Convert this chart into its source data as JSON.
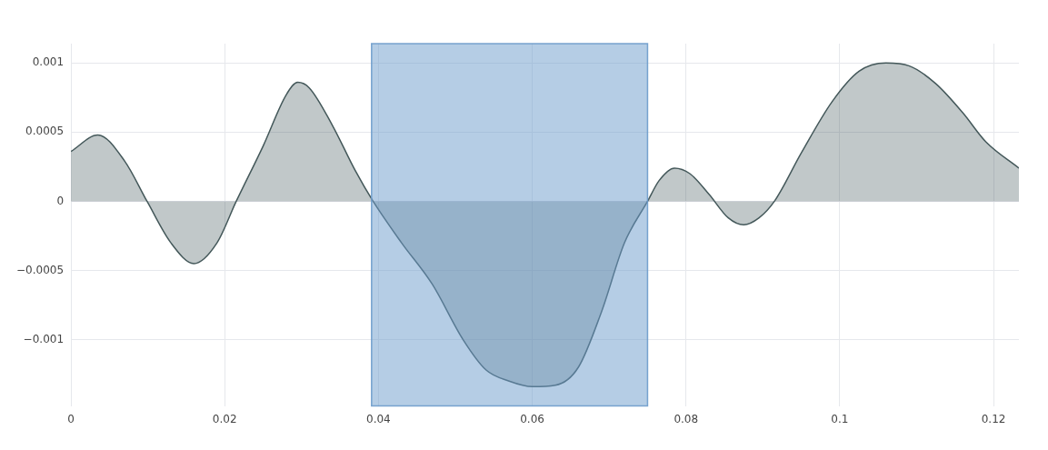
{
  "chart_data": {
    "type": "area",
    "x": [
      0,
      0.0035,
      0.007,
      0.0099,
      0.013,
      0.016,
      0.019,
      0.0215,
      0.025,
      0.028,
      0.0295,
      0.031,
      0.034,
      0.037,
      0.0393,
      0.043,
      0.047,
      0.051,
      0.054,
      0.057,
      0.06,
      0.063,
      0.066,
      0.069,
      0.072,
      0.075,
      0.0765,
      0.0785,
      0.0805,
      0.083,
      0.0855,
      0.0875,
      0.0895,
      0.0915,
      0.095,
      0.099,
      0.1025,
      0.106,
      0.109,
      0.1125,
      0.116,
      0.119,
      0.1233
    ],
    "series": [
      {
        "color": "#44585a",
        "values": [
          0.00036,
          0.00048,
          0.00029,
          0,
          -0.0003,
          -0.00045,
          -0.0003,
          0,
          0.0004,
          0.00077,
          0.00086,
          0.00082,
          0.00055,
          0.00022,
          0,
          -0.0003,
          -0.0006,
          -0.001,
          -0.00122,
          -0.0013,
          -0.00134,
          -0.00133,
          -0.0012,
          -0.0008,
          -0.0003,
          0,
          0.00015,
          0.00024,
          0.0002,
          5e-05,
          -0.00012,
          -0.00017,
          -0.00012,
          0,
          0.00035,
          0.00072,
          0.00094,
          0.001,
          0.00098,
          0.00085,
          0.00064,
          0.00043,
          0.00024
        ]
      }
    ],
    "xlim": [
      0,
      0.1233
    ],
    "ylim": [
      -0.00148,
      0.00114
    ],
    "xticks": [
      0,
      0.02,
      0.04,
      0.06,
      0.08,
      0.1,
      0.12
    ],
    "yticks": [
      {
        "value": -0.001,
        "label": "−0.001"
      },
      {
        "value": -0.0005,
        "label": "−0.0005"
      },
      0,
      0.0005,
      0.001
    ],
    "bands": [
      {
        "axis": "x",
        "from": 0.0391,
        "to": 0.075,
        "color": "#6b9bcb"
      }
    ],
    "grid": true,
    "legend": false,
    "marker": "none"
  }
}
